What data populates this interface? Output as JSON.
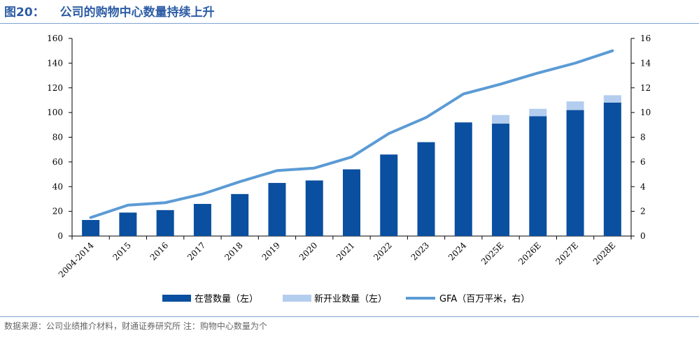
{
  "header": {
    "figure_no": "图20：",
    "title": "公司的购物中心数量持续上升"
  },
  "footer": {
    "source": "数据来源：公司业绩推介材料，财通证券研究所  注：购物中心数量为个"
  },
  "colors": {
    "operating": "#0a4fa0",
    "new_open": "#b3cdee",
    "gfa": "#5b9bd5",
    "accent": "#2e5da6"
  },
  "chart_data": {
    "type": "bar",
    "title": "公司的购物中心数量持续上升",
    "categories": [
      "2004-2014",
      "2015",
      "2016",
      "2017",
      "2018",
      "2019",
      "2020",
      "2021",
      "2022",
      "2023",
      "2024",
      "2025E",
      "2026E",
      "2027E",
      "2028E"
    ],
    "series": [
      {
        "name": "在营数量（左）",
        "kind": "bar",
        "axis": "left",
        "stack": "s",
        "values": [
          13,
          19,
          21,
          26,
          34,
          43,
          45,
          54,
          66,
          76,
          92,
          91,
          97,
          102,
          108
        ]
      },
      {
        "name": "新开业数量（左）",
        "kind": "bar",
        "axis": "left",
        "stack": "s",
        "values": [
          0,
          0,
          0,
          0,
          0,
          0,
          0,
          0,
          0,
          0,
          0,
          7,
          6,
          7,
          6
        ]
      },
      {
        "name": "GFA（百万平米，右）",
        "kind": "line",
        "axis": "right",
        "values": [
          1.5,
          2.5,
          2.7,
          3.4,
          4.4,
          5.3,
          5.5,
          6.4,
          8.3,
          9.6,
          11.5,
          12.3,
          13.2,
          14.0,
          15.0
        ]
      }
    ],
    "y_left": {
      "min": 0,
      "max": 160,
      "ticks": [
        0,
        20,
        40,
        60,
        80,
        100,
        120,
        140,
        160
      ]
    },
    "y_right": {
      "min": 0,
      "max": 16,
      "ticks": [
        0,
        2,
        4,
        6,
        8,
        10,
        12,
        14,
        16
      ]
    },
    "legend": [
      "在营数量（左）",
      "新开业数量（左）",
      "GFA（百万平米，右）"
    ],
    "legend_position": "bottom",
    "grid": false
  }
}
